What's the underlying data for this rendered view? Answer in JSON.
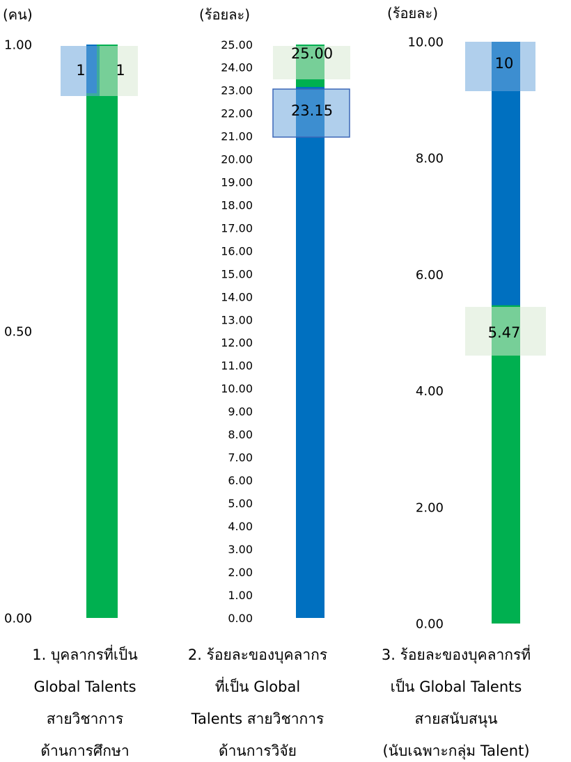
{
  "chart_data": [
    {
      "type": "bar",
      "unit_label": "(คน)",
      "ylim": [
        0,
        1
      ],
      "yticks": [
        "0.00",
        "0.50",
        "1.00"
      ],
      "caption": [
        "1. บุคลากรที่เป็น",
        "Global Talents",
        "สายวิชาการ",
        "ด้านการศึกษา"
      ],
      "series": [
        {
          "color": "#0070C0",
          "values": [
            1
          ],
          "label": "1"
        },
        {
          "color": "#00B050",
          "values": [
            1
          ],
          "label": "1"
        }
      ]
    },
    {
      "type": "bar",
      "unit_label": "(ร้อยละ)",
      "ylim": [
        0,
        25
      ],
      "yticks": [
        "0.00",
        "1.00",
        "2.00",
        "3.00",
        "4.00",
        "5.00",
        "6.00",
        "7.00",
        "8.00",
        "9.00",
        "10.00",
        "11.00",
        "12.00",
        "13.00",
        "14.00",
        "15.00",
        "16.00",
        "17.00",
        "18.00",
        "19.00",
        "20.00",
        "21.00",
        "22.00",
        "23.00",
        "24.00",
        "25.00"
      ],
      "caption": [
        "2. ร้อยละของบุคลากร",
        "ที่เป็น Global",
        "Talents สายวิชาการ",
        "ด้านการวิจัย"
      ],
      "series": [
        {
          "color": "#00B050",
          "values": [
            25.0
          ],
          "label": "25.00"
        },
        {
          "color": "#0070C0",
          "values": [
            23.15
          ],
          "label": "23.15"
        }
      ]
    },
    {
      "type": "bar",
      "unit_label": "(ร้อยละ)",
      "ylim": [
        0,
        10
      ],
      "yticks": [
        "0.00",
        "2.00",
        "4.00",
        "6.00",
        "8.00",
        "10.00"
      ],
      "caption": [
        "3. ร้อยละของบุคลากรที่",
        "เป็น Global Talents",
        "สายสนับสนุน",
        "(นับเฉพาะกลุ่ม Talent)"
      ],
      "series": [
        {
          "color": "#0070C0",
          "values": [
            10
          ],
          "label": "10"
        },
        {
          "color": "#00B050",
          "values": [
            5.47
          ],
          "label": "5.47"
        }
      ]
    }
  ]
}
